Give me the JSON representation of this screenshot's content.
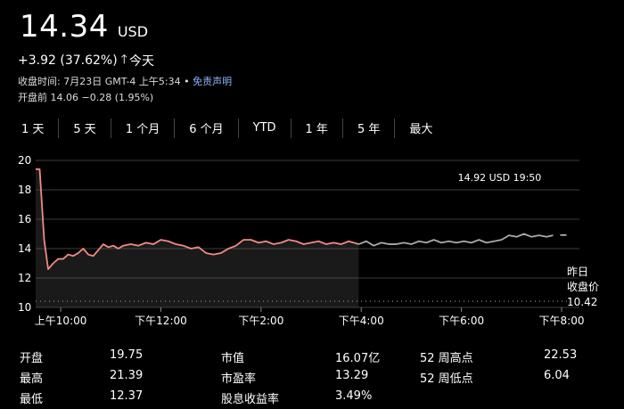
{
  "quote": {
    "price": "14.34",
    "currency": "USD",
    "change": "+3.92 (37.62%)",
    "arrow": "🡑",
    "period": "今天",
    "close_info_prefix": "收盘时间: 7月23日 GMT-4 上午5:34 • ",
    "disclaimer": "免责声明",
    "premarket": "开盘前 14.06 −0.28 (1.95%)"
  },
  "tabs": [
    "1 天",
    "5 天",
    "1 个月",
    "6 个月",
    "YTD",
    "1 年",
    "5 年",
    "最大"
  ],
  "tooltip": "14.92 USD  19:50",
  "prev_close": {
    "line1": "昨日",
    "line2": "收盘价",
    "value": "10.42"
  },
  "colors": {
    "up": "#f28b82",
    "gray": "#aaaaaa",
    "grid": "#3c3c3c"
  },
  "chart_data": {
    "type": "line",
    "y_ticks": [
      "20",
      "18",
      "16",
      "14",
      "12",
      "10"
    ],
    "x_ticks": [
      "上午10:00",
      "下午12:00",
      "下午2:00",
      "下午4:00",
      "下午6:00",
      "下午8:00"
    ],
    "ylim": [
      10,
      20
    ],
    "xlim": [
      9.5,
      20.0
    ],
    "previous_close": 10.42,
    "series": [
      {
        "name": "",
        "session": "regular",
        "x": [
          9.5,
          9.58,
          9.67,
          9.75,
          9.85,
          9.95,
          10.05,
          10.15,
          10.25,
          10.35,
          10.45,
          10.55,
          10.65,
          10.75,
          10.85,
          10.95,
          11.05,
          11.15,
          11.25,
          11.4,
          11.55,
          11.7,
          11.85,
          12.0,
          12.15,
          12.3,
          12.45,
          12.6,
          12.75,
          12.9,
          13.05,
          13.2,
          13.35,
          13.5,
          13.65,
          13.8,
          13.95,
          14.1,
          14.25,
          14.4,
          14.55,
          14.7,
          14.85,
          15.0,
          15.15,
          15.3,
          15.45,
          15.6,
          15.75,
          15.85,
          15.95
        ],
        "values": [
          19.4,
          19.4,
          14.6,
          12.6,
          13.0,
          13.3,
          13.3,
          13.6,
          13.5,
          13.7,
          14.0,
          13.6,
          13.5,
          13.9,
          14.3,
          14.1,
          14.2,
          14.0,
          14.2,
          14.3,
          14.2,
          14.4,
          14.3,
          14.6,
          14.5,
          14.3,
          14.2,
          14.0,
          14.1,
          13.7,
          13.6,
          13.7,
          14.0,
          14.2,
          14.6,
          14.6,
          14.4,
          14.5,
          14.3,
          14.4,
          14.6,
          14.5,
          14.3,
          14.4,
          14.5,
          14.3,
          14.4,
          14.3,
          14.5,
          14.4,
          14.3
        ]
      },
      {
        "name": "",
        "session": "after-hours",
        "x": [
          15.95,
          16.1,
          16.25,
          16.4,
          16.55,
          16.7,
          16.85,
          17.0,
          17.15,
          17.3,
          17.45,
          17.6,
          17.75,
          17.9,
          18.05,
          18.2,
          18.35,
          18.5,
          18.65,
          18.8,
          18.95,
          19.1,
          19.25,
          19.4,
          19.55,
          19.7,
          19.83
        ],
        "values": [
          14.3,
          14.5,
          14.2,
          14.4,
          14.3,
          14.3,
          14.4,
          14.3,
          14.5,
          14.4,
          14.6,
          14.4,
          14.5,
          14.4,
          14.5,
          14.4,
          14.6,
          14.4,
          14.5,
          14.6,
          14.9,
          14.8,
          15.0,
          14.8,
          14.9,
          14.8,
          14.9
        ]
      }
    ],
    "annotation": {
      "x": 19.83,
      "y": 14.92,
      "label": "14.92 USD  19:50"
    }
  },
  "stats": [
    {
      "label": "开盘",
      "value": "19.75"
    },
    {
      "label": "最高",
      "value": "21.39"
    },
    {
      "label": "最低",
      "value": "12.37"
    },
    {
      "label": "市值",
      "value": "16.07亿"
    },
    {
      "label": "市盈率",
      "value": "13.29"
    },
    {
      "label": "股息收益率",
      "value": "3.49%"
    },
    {
      "label": "52 周高点",
      "value": "22.53"
    },
    {
      "label": "52 周低点",
      "value": "6.04"
    }
  ]
}
